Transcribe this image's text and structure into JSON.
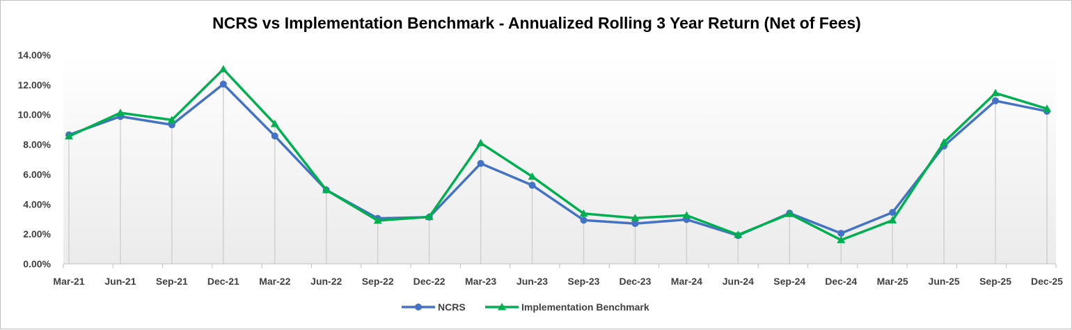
{
  "chart_data": {
    "type": "line",
    "title": "NCRS vs Implementation Benchmark - Annualized Rolling 3 Year Return (Net of Fees)",
    "xlabel": "",
    "ylabel": "",
    "categories": [
      "Mar-21",
      "Jun-21",
      "Sep-21",
      "Dec-21",
      "Mar-22",
      "Jun-22",
      "Sep-22",
      "Dec-22",
      "Mar-23",
      "Jun-23",
      "Sep-23",
      "Dec-23",
      "Mar-24",
      "Jun-24",
      "Sep-24",
      "Dec-24",
      "Mar-25",
      "Jun-25",
      "Sep-25",
      "Dec-25"
    ],
    "ylim": [
      0,
      0.14
    ],
    "yticks": [
      0,
      0.02,
      0.04,
      0.06,
      0.08,
      0.1,
      0.12,
      0.14
    ],
    "ytick_labels": [
      "0.00%",
      "2.00%",
      "4.00%",
      "6.00%",
      "8.00%",
      "10.00%",
      "12.00%",
      "14.00%"
    ],
    "grid": "vertical drop lines at each category",
    "legend_position": "bottom",
    "series": [
      {
        "name": "NCRS",
        "color": "#4472C4",
        "marker": "circle",
        "values": [
          0.0865,
          0.0988,
          0.0932,
          0.1205,
          0.0857,
          0.0495,
          0.0305,
          0.0313,
          0.0673,
          0.0527,
          0.0293,
          0.027,
          0.0297,
          0.019,
          0.034,
          0.0205,
          0.0345,
          0.079,
          0.1093,
          0.1023
        ]
      },
      {
        "name": "Implementation Benchmark",
        "color": "#00B050",
        "marker": "triangle",
        "values": [
          0.0855,
          0.1012,
          0.0965,
          0.1305,
          0.0938,
          0.0495,
          0.029,
          0.0315,
          0.081,
          0.0585,
          0.0337,
          0.0307,
          0.0325,
          0.0195,
          0.0335,
          0.016,
          0.0292,
          0.0815,
          0.1145,
          0.104
        ]
      }
    ]
  }
}
